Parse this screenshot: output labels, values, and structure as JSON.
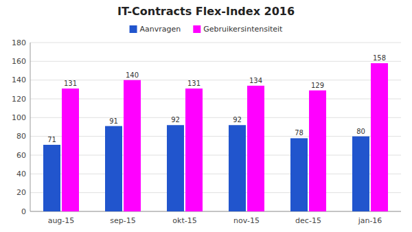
{
  "chart_data": {
    "type": "bar",
    "title": "IT-Contracts Flex-Index 2016",
    "categories": [
      "aug-15",
      "sep-15",
      "okt-15",
      "nov-15",
      "dec-15",
      "jan-16"
    ],
    "series": [
      {
        "name": "Aanvragen",
        "color": "#2155CD",
        "values": [
          71,
          91,
          92,
          92,
          78,
          80
        ]
      },
      {
        "name": "Gebruikersintensiteit",
        "color": "#FF00FF",
        "values": [
          131,
          140,
          131,
          134,
          129,
          158
        ]
      }
    ],
    "ylim": [
      0,
      180
    ],
    "yticks": [
      0,
      20,
      40,
      60,
      80,
      100,
      120,
      140,
      160,
      180
    ],
    "grid": true,
    "data_labels": true,
    "legend": "top"
  }
}
